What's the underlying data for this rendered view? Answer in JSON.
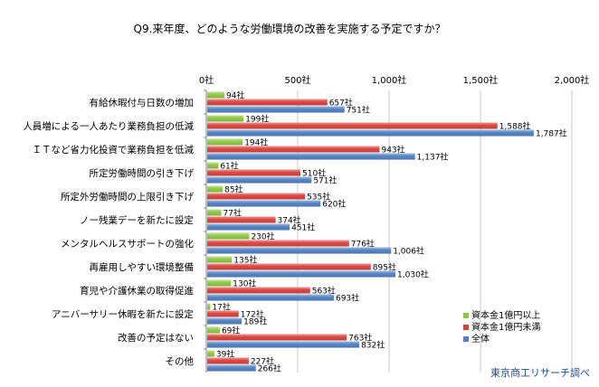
{
  "chart_data": {
    "type": "bar",
    "orientation": "horizontal",
    "title": "Q9.来年度、どのような労働環境の改善を実施する予定ですか？",
    "xlim": [
      0,
      2000
    ],
    "ticks": [
      0,
      500,
      1000,
      1500,
      2000
    ],
    "tick_labels": [
      "0社",
      "500社",
      "1,000社",
      "1,500社",
      "2,000社"
    ],
    "grid": true,
    "legend_position": "bottom-right",
    "categories": [
      "有給休暇付与日数の増加",
      "人員増による一人あたり業務負担の低減",
      "ＩＴなど省力化投資で業務負担を低減",
      "所定労働時間の引き下げ",
      "所定外労働時間の上限引き下げ",
      "ノー残業デーを新たに設定",
      "メンタルヘルスサポートの強化",
      "再雇用しやすい環境整備",
      "育児や介護休業の取得促進",
      "アニバーサリー休暇を新たに設定",
      "改善の予定はない",
      "その他"
    ],
    "series": [
      {
        "name": "資本金1億円以上",
        "color": "#8cc63f",
        "values": [
          94,
          199,
          194,
          61,
          85,
          77,
          230,
          135,
          130,
          17,
          69,
          39
        ],
        "labels": [
          "94社",
          "199社",
          "194社",
          "61社",
          "85社",
          "77社",
          "230社",
          "135社",
          "130社",
          "17社",
          "69社",
          "39社"
        ]
      },
      {
        "name": "資本金1億円未満",
        "color": "#d9403a",
        "values": [
          657,
          1588,
          943,
          510,
          535,
          374,
          776,
          895,
          563,
          172,
          763,
          227
        ],
        "labels": [
          "657社",
          "1,588社",
          "943社",
          "510社",
          "535社",
          "374社",
          "776社",
          "895社",
          "563社",
          "172社",
          "763社",
          "227社"
        ]
      },
      {
        "name": "全体",
        "color": "#4f7fc4",
        "values": [
          751,
          1787,
          1137,
          571,
          620,
          451,
          1006,
          1030,
          693,
          189,
          832,
          266
        ],
        "labels": [
          "751社",
          "1,787社",
          "1,137社",
          "571社",
          "620社",
          "451社",
          "1,006社",
          "1,030社",
          "693社",
          "189社",
          "832社",
          "266社"
        ]
      }
    ],
    "source": "東京商工リサーチ調べ"
  }
}
